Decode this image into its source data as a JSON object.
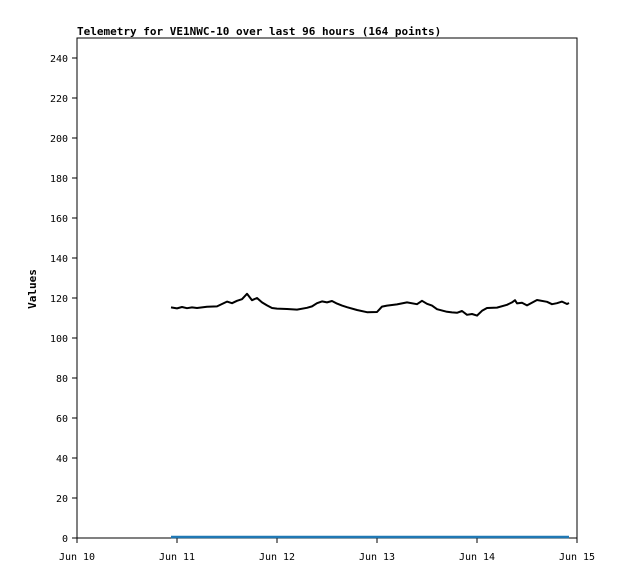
{
  "chart_data": {
    "type": "line",
    "title": "Telemetry for VE1NWC-10 over last 96 hours (164 points)",
    "xlabel": "",
    "ylabel": "Values",
    "xlim": [
      "Jun 10",
      "Jun 15"
    ],
    "ylim": [
      0,
      250
    ],
    "xticks": [
      "Jun 10",
      "Jun 11",
      "Jun 12",
      "Jun 13",
      "Jun 14",
      "Jun 15"
    ],
    "yticks": [
      0,
      20,
      40,
      60,
      80,
      100,
      120,
      140,
      160,
      180,
      200,
      220,
      240
    ],
    "grid": false,
    "legend": "none",
    "x_unit": "days since Jun 10",
    "series": [
      {
        "color": "#000000",
        "x": [
          0.94,
          1.0,
          1.05,
          1.1,
          1.15,
          1.2,
          1.3,
          1.4,
          1.5,
          1.55,
          1.6,
          1.65,
          1.7,
          1.75,
          1.8,
          1.82,
          1.85,
          1.9,
          1.95,
          2.0,
          2.1,
          2.2,
          2.3,
          2.35,
          2.4,
          2.45,
          2.5,
          2.55,
          2.6,
          2.65,
          2.7,
          2.8,
          2.9,
          3.0,
          3.05,
          3.1,
          3.15,
          3.2,
          3.3,
          3.4,
          3.45,
          3.5,
          3.55,
          3.6,
          3.7,
          3.75,
          3.8,
          3.85,
          3.9,
          3.95,
          4.0,
          4.05,
          4.1,
          4.2,
          4.3,
          4.35,
          4.38,
          4.4,
          4.45,
          4.5,
          4.6,
          4.7,
          4.75,
          4.8,
          4.85,
          4.9,
          4.92
        ],
        "values": [
          115.3,
          114.8,
          115.5,
          114.9,
          115.3,
          115.0,
          115.6,
          115.8,
          118.2,
          117.4,
          118.6,
          119.4,
          122.1,
          118.9,
          120.0,
          119.1,
          117.8,
          116.3,
          115.0,
          114.7,
          114.5,
          114.2,
          115.1,
          115.8,
          117.4,
          118.3,
          117.8,
          118.5,
          117.2,
          116.2,
          115.4,
          114.0,
          112.9,
          113.0,
          115.7,
          116.2,
          116.5,
          116.8,
          117.8,
          116.9,
          118.6,
          117.1,
          116.2,
          114.4,
          113.1,
          112.8,
          112.6,
          113.5,
          111.6,
          112.0,
          111.2,
          113.6,
          115.0,
          115.2,
          116.6,
          117.8,
          118.9,
          117.3,
          117.6,
          116.3,
          119.0,
          118.1,
          116.9,
          117.4,
          118.2,
          117.0,
          117.5
        ]
      },
      {
        "color": "#1f78b4",
        "x": [
          0.94,
          4.92
        ],
        "values": [
          0.5,
          0.5
        ]
      }
    ]
  }
}
